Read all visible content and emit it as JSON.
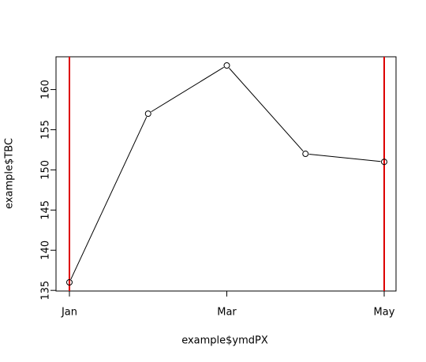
{
  "chart_data": {
    "type": "line",
    "x_label": "example$ymdPX",
    "y_label": "example$TBC",
    "categories": [
      "Jan",
      null,
      "Mar",
      null,
      "May"
    ],
    "values": [
      136,
      157,
      163,
      152,
      151
    ],
    "color": "#000000",
    "markers": true,
    "vlines": [
      0,
      4
    ],
    "vline_color": "#dd0000",
    "ylim": [
      134.92,
      164.08
    ],
    "yticks": [
      135,
      140,
      145,
      150,
      155,
      160
    ],
    "grid": false
  }
}
